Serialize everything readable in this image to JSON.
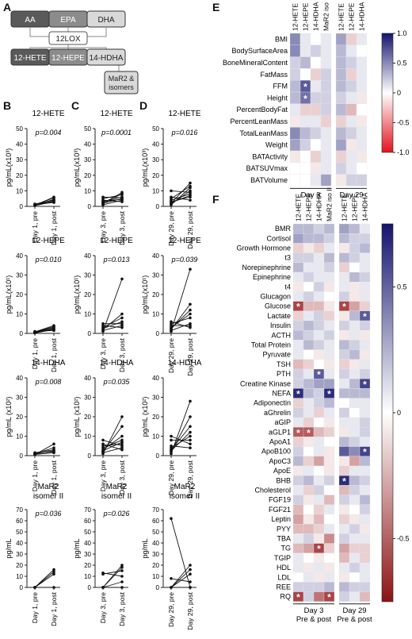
{
  "panel_letters": {
    "a": "A",
    "b": "B",
    "c": "C",
    "d": "D",
    "e": "E",
    "f": "F"
  },
  "pathway": {
    "top_boxes": [
      "AA",
      "EPA",
      "DHA"
    ],
    "enzyme": "12LOX",
    "bottom_boxes": [
      "12-HETE",
      "12-HEPE",
      "14-HDHA"
    ],
    "product_line1": "MaR2 &",
    "product_line2": "isomers",
    "colors": {
      "dark": "#5a5a5a",
      "mid": "#8c8c8c",
      "light": "#d9d9d9"
    }
  },
  "line_panels": {
    "x_labels": {
      "day1": [
        "Day 1, pre",
        "Day 1, post"
      ],
      "day3": [
        "Day 3, pre",
        "Day 3, post"
      ],
      "day29": [
        "Day 29, pre",
        "Day 29, post"
      ]
    },
    "rows": [
      {
        "analyte": "12-HETE",
        "ylabel": "pg/mL(x10³)",
        "yticks": [
          "0",
          "10",
          "20",
          "30",
          "40",
          "50"
        ],
        "ymax": 50,
        "panels": [
          {
            "title": "12-HETE",
            "p": "p=0.004",
            "pre": [
              0.5,
              0.8,
              1.0,
              1.2,
              0.7,
              1.5,
              0.9
            ],
            "post": [
              3.0,
              4.5,
              5.5,
              2.5,
              6.0,
              4.0,
              3.5
            ]
          },
          {
            "title": "12-HETE",
            "p": "p=0.0001",
            "pre": [
              1.0,
              2.0,
              3.0,
              5.0,
              4.0,
              1.5,
              2.5,
              6.0,
              3.5
            ],
            "post": [
              4.0,
              5.0,
              6.0,
              7.5,
              3.0,
              9.0,
              8.0,
              5.5,
              4.5
            ]
          },
          {
            "title": "12-HETE",
            "p": "p=0.016",
            "pre": [
              1.0,
              2.0,
              3.0,
              4.0,
              10.0,
              6.0,
              2.5,
              1.5,
              5.0
            ],
            "post": [
              12.0,
              15.0,
              6.0,
              8.0,
              9.0,
              4.0,
              7.0,
              10.0,
              13.0
            ]
          }
        ]
      },
      {
        "analyte": "12-HEPE",
        "ylabel": "pg/mL(x10¹)",
        "yticks": [
          "0",
          "10",
          "20",
          "30",
          "40"
        ],
        "ymax": 40,
        "panels": [
          {
            "title": "12-HEPE",
            "p": "p=0.010",
            "pre": [
              0.2,
              0.5,
              0.8,
              1.0,
              0.3,
              0.6
            ],
            "post": [
              2.0,
              3.0,
              4.0,
              1.5,
              2.5,
              3.5
            ]
          },
          {
            "title": "12-HEPE",
            "p": "p=0.013",
            "pre": [
              1.0,
              2.0,
              3.0,
              5.0,
              1.5,
              4.0,
              2.5
            ],
            "post": [
              28.0,
              10.0,
              8.0,
              5.0,
              4.0,
              3.0,
              6.0
            ]
          },
          {
            "title": "12-HEPE",
            "p": "p=0.039",
            "pre": [
              1.0,
              2.0,
              3.0,
              5.0,
              1.5,
              4.0,
              6.0,
              2.5
            ],
            "post": [
              33.0,
              15.0,
              10.0,
              8.0,
              5.0,
              4.0,
              3.0,
              12.0
            ]
          }
        ]
      },
      {
        "analyte": "14-HDHA",
        "ylabel": "pg/mL (x10²)",
        "yticks": [
          "0",
          "10",
          "20",
          "30",
          "40"
        ],
        "ymax": 40,
        "panels": [
          {
            "title": "14-HDHA",
            "p": "p=0.008",
            "pre": [
              0.5,
              1.0,
              1.5,
              0.8,
              1.2,
              0.6
            ],
            "post": [
              6.0,
              4.0,
              3.0,
              2.5,
              2.0,
              1.5
            ]
          },
          {
            "title": "14-HDHA",
            "p": "p=0.035",
            "pre": [
              1.0,
              2.0,
              3.0,
              4.0,
              8.0,
              5.0,
              1.5,
              6.0,
              2.5
            ],
            "post": [
              20.0,
              15.0,
              10.0,
              8.0,
              5.0,
              6.0,
              4.0,
              3.0,
              7.0
            ]
          },
          {
            "title": "14-HDHA",
            "p": "",
            "pre": [
              1.0,
              2.0,
              3.0,
              4.0,
              8.0,
              10.0,
              5.0,
              2.5
            ],
            "post": [
              28.0,
              20.0,
              15.0,
              10.0,
              8.0,
              6.0,
              4.0,
              12.0
            ]
          }
        ]
      },
      {
        "analyte": "MaR2 isomer II",
        "ylabel": "pg/mL",
        "yticks": [
          "0",
          "10",
          "20",
          "30",
          "40",
          "50",
          "60",
          "70"
        ],
        "ymax": 70,
        "panels": [
          {
            "title": "MaR2\nisomer II",
            "p": "p=0.036",
            "pre": [
              0,
              0,
              0,
              0
            ],
            "post": [
              12.0,
              14.0,
              16.0,
              0
            ]
          },
          {
            "title": "MaR2\nisomer II",
            "p": "p=0.026",
            "pre": [
              0,
              0,
              12.0,
              13.0,
              0,
              0
            ],
            "post": [
              18.0,
              20.0,
              15.0,
              10.0,
              0,
              5.0
            ]
          },
          {
            "title": "MaR2\nisomer II",
            "p": "",
            "pre": [
              62.0,
              0,
              0,
              0,
              8.0,
              0
            ],
            "post": [
              0,
              20.0,
              16.0,
              0,
              5.0,
              12.0
            ]
          }
        ]
      }
    ]
  },
  "heatmap_e": {
    "columns": [
      "12-HETE",
      "12-HEPE",
      "14-HDHA",
      "MaR2 iso II",
      "12-HETE",
      "12-HEPE",
      "14-HDHA"
    ],
    "rows": [
      "BMI",
      "BodySurfaceArea",
      "BoneMineralContent",
      "FatMass",
      "FFM",
      "Height",
      "PercentBodyFat",
      "PercentLeanMass",
      "TotalLeanMass",
      "Weight",
      "BATActivity",
      "BATSUVmax",
      "BATVolume"
    ],
    "values": [
      [
        0.5,
        0.1,
        0.0,
        0.1,
        0.4,
        -0.2,
        0.1
      ],
      [
        0.5,
        0.1,
        0.2,
        0.1,
        0.3,
        0.1,
        0.0
      ],
      [
        0.2,
        0.3,
        0.0,
        0.1,
        0.3,
        0.2,
        0.1
      ],
      [
        0.2,
        0.0,
        -0.2,
        0.2,
        0.3,
        -0.2,
        0.1
      ],
      [
        0.3,
        0.7,
        0.1,
        0.2,
        0.3,
        0.2,
        0.1
      ],
      [
        0.3,
        0.6,
        0.2,
        0.2,
        0.2,
        0.1,
        -0.1
      ],
      [
        0.1,
        -0.2,
        -0.2,
        0.2,
        0.3,
        -0.3,
        0.0
      ],
      [
        -0.1,
        0.1,
        0.1,
        -0.2,
        -0.2,
        0.1,
        -0.1
      ],
      [
        0.5,
        0.3,
        0.2,
        0.1,
        0.3,
        0.2,
        0.1
      ],
      [
        0.4,
        0.2,
        0.0,
        0.1,
        0.4,
        -0.1,
        0.1
      ],
      [
        -0.1,
        0.0,
        -0.2,
        0.1,
        -0.2,
        0.1,
        -0.1
      ],
      [
        0.0,
        0.0,
        -0.1,
        0.1,
        0.2,
        0.1,
        0.0
      ],
      [
        0.0,
        0.0,
        0.1,
        0.4,
        -0.1,
        0.2,
        0.2
      ]
    ],
    "stars": [
      [
        4,
        1
      ],
      [
        5,
        1
      ]
    ],
    "groups": [
      "Day 3",
      "Day 29"
    ],
    "colorbar_ticks": [
      "1.0",
      "0.5",
      "0",
      "-0.5",
      "-1.0"
    ],
    "star_char": "*"
  },
  "heatmap_f": {
    "columns": [
      "12-HETE",
      "12-HEPE",
      "14-HDHA",
      "MaR2 iso II",
      "12-HETE",
      "12-HEPE",
      "14-HDHA"
    ],
    "rows": [
      "BMR",
      "Cortisol",
      "Growth Hormone",
      "t3",
      "Norepinephrine",
      "Epinephrine",
      "t4",
      "Glucagon",
      "Glucose",
      "Lactate",
      "Insulin",
      "ACTH",
      "Total Protein",
      "Pyruvate",
      "TSH",
      "PTH",
      "Creatine Kinase",
      "NEFA",
      "Adiponectin",
      "aGhrelin",
      "aGIP",
      "aGLP1",
      "ApoA1",
      "ApoB100",
      "ApoC3",
      "ApoE",
      "BHB",
      "Cholesterol",
      "FGF19",
      "FGF21",
      "Leptin",
      "PYY",
      "TBA",
      "TG",
      "TGIP",
      "HDL",
      "LDL",
      "REE",
      "RQ"
    ],
    "values": [
      [
        0.3,
        0.3,
        0.2,
        0.3,
        0.4,
        0.3,
        0.1
      ],
      [
        0.4,
        0.3,
        0.3,
        0.2,
        0.3,
        0.2,
        0.2
      ],
      [
        -0.2,
        -0.1,
        -0.2,
        0.1,
        -0.1,
        0.2,
        0.3
      ],
      [
        0.2,
        0.2,
        0.1,
        0.3,
        0.3,
        0.2,
        0.1
      ],
      [
        0.3,
        0.1,
        0.1,
        0.2,
        -0.2,
        0.0,
        0.1
      ],
      [
        0.1,
        0.2,
        0.1,
        0.1,
        0.1,
        0.3,
        0.2
      ],
      [
        -0.1,
        0.0,
        0.2,
        -0.1,
        0.1,
        -0.1,
        0.1
      ],
      [
        0.1,
        0.2,
        0.1,
        0.0,
        0.2,
        -0.1,
        0.1
      ],
      [
        -0.8,
        -0.3,
        -0.3,
        -0.1,
        -0.8,
        -0.4,
        -0.2
      ],
      [
        -0.2,
        0.1,
        0.2,
        -0.2,
        -0.1,
        0.3,
        0.7
      ],
      [
        0.2,
        0.3,
        0.2,
        0.1,
        0.2,
        0.1,
        0.2
      ],
      [
        0.3,
        0.2,
        0.1,
        0.2,
        -0.1,
        0.1,
        -0.1
      ],
      [
        0.1,
        0.3,
        0.2,
        0.1,
        0.3,
        0.2,
        0.1
      ],
      [
        0.1,
        0.0,
        -0.1,
        0.1,
        0.2,
        0.3,
        -0.1
      ],
      [
        -0.3,
        -0.2,
        0.0,
        -0.1,
        -0.2,
        -0.1,
        0.1
      ],
      [
        0.2,
        0.1,
        0.7,
        0.1,
        0.2,
        0.1,
        0.2
      ],
      [
        0.2,
        0.3,
        0.4,
        0.4,
        0.1,
        0.3,
        0.8
      ],
      [
        0.9,
        0.3,
        0.2,
        0.9,
        0.3,
        0.3,
        0.3
      ],
      [
        -0.2,
        0.1,
        0.2,
        0.3,
        0.0,
        0.1,
        0.1
      ],
      [
        0.2,
        0.1,
        -0.2,
        0.1,
        0.2,
        0.0,
        0.1
      ],
      [
        0.1,
        -0.2,
        0.0,
        -0.1,
        0.1,
        0.1,
        0.2
      ],
      [
        -0.7,
        -0.7,
        -0.3,
        -0.2,
        -0.1,
        0.1,
        0.2
      ],
      [
        -0.2,
        -0.1,
        0.1,
        0.0,
        0.3,
        0.2,
        0.1
      ],
      [
        0.2,
        0.0,
        0.1,
        -0.1,
        0.7,
        0.5,
        0.8
      ],
      [
        0.3,
        -0.2,
        -0.4,
        -0.1,
        -0.1,
        -0.4,
        0.3
      ],
      [
        -0.1,
        0.1,
        0.0,
        -0.1,
        -0.2,
        0.1,
        0.1
      ],
      [
        0.2,
        0.3,
        0.1,
        0.2,
        0.9,
        0.3,
        0.2
      ],
      [
        0.1,
        -0.2,
        0.2,
        0.0,
        -0.3,
        0.2,
        0.1
      ],
      [
        0.2,
        -0.1,
        0.1,
        -0.3,
        0.2,
        0.1,
        0.3
      ],
      [
        -0.3,
        0.0,
        -0.2,
        0.1,
        -0.1,
        0.0,
        0.2
      ],
      [
        -0.4,
        -0.1,
        -0.3,
        0.0,
        -0.2,
        -0.1,
        0.1
      ],
      [
        -0.3,
        -0.3,
        -0.2,
        0.1,
        0.1,
        0.2,
        -0.1
      ],
      [
        0.1,
        0.2,
        -0.1,
        -0.5,
        0.2,
        0.1,
        0.1
      ],
      [
        -0.3,
        -0.4,
        -0.8,
        -0.2,
        -0.4,
        -0.2,
        -0.2
      ],
      [
        0.1,
        0.0,
        -0.1,
        0.0,
        -0.3,
        0.1,
        -0.2
      ],
      [
        0.1,
        -0.1,
        0.1,
        -0.1,
        0.1,
        0.2,
        0.1
      ],
      [
        0.0,
        0.1,
        -0.1,
        0.1,
        -0.1,
        0.0,
        0.1
      ],
      [
        0.2,
        0.2,
        0.2,
        0.3,
        0.3,
        0.2,
        0.2
      ],
      [
        -0.8,
        0.2,
        -0.6,
        -0.8,
        0.2,
        0.1,
        -0.3
      ]
    ],
    "stars": [
      [
        8,
        0
      ],
      [
        8,
        4
      ],
      [
        9,
        6
      ],
      [
        15,
        2
      ],
      [
        16,
        6
      ],
      [
        17,
        0
      ],
      [
        17,
        3
      ],
      [
        21,
        0
      ],
      [
        21,
        1
      ],
      [
        23,
        6
      ],
      [
        26,
        4
      ],
      [
        33,
        2
      ],
      [
        38,
        0
      ],
      [
        38,
        3
      ]
    ],
    "groups": [
      "Day 3",
      "Day 29"
    ],
    "groups_sub": [
      "Pre & post",
      "Pre & post"
    ],
    "colorbar_ticks": [
      "0.5",
      "0",
      "-0.5"
    ],
    "star_char": "*"
  }
}
